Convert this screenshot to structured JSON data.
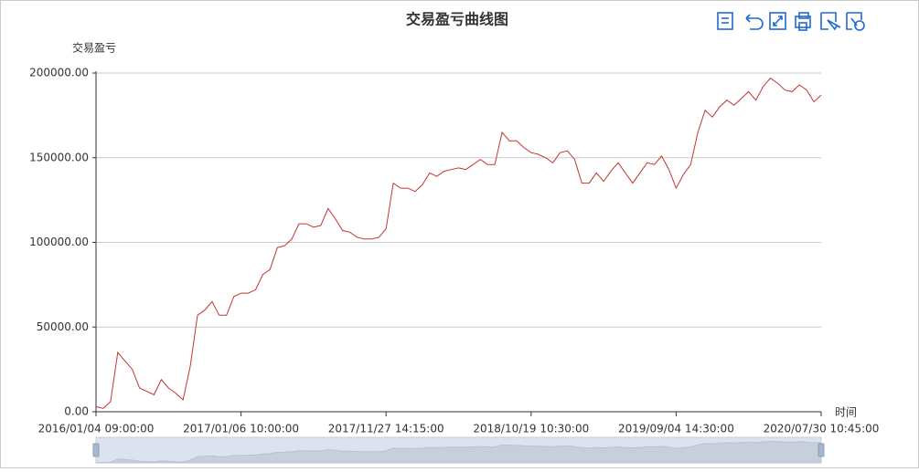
{
  "chart_data": {
    "type": "line",
    "title": "交易盈亏曲线图",
    "y_axis_label": "交易盈亏",
    "x_axis_label": "时间",
    "categories": [
      "2016/01/04 09:00:00",
      null,
      null,
      null,
      null,
      null,
      null,
      null,
      null,
      null,
      null,
      null,
      null,
      null,
      null,
      null,
      null,
      null,
      null,
      null,
      "2017/01/06 10:00:00",
      null,
      null,
      null,
      null,
      null,
      null,
      null,
      null,
      null,
      null,
      null,
      null,
      null,
      null,
      null,
      null,
      null,
      null,
      null,
      "2017/11/27 14:15:00",
      null,
      null,
      null,
      null,
      null,
      null,
      null,
      null,
      null,
      null,
      null,
      null,
      null,
      null,
      null,
      null,
      null,
      null,
      null,
      "2018/10/19 10:30:00",
      null,
      null,
      null,
      null,
      null,
      null,
      null,
      null,
      null,
      null,
      null,
      null,
      null,
      null,
      null,
      null,
      null,
      null,
      null,
      "2019/09/04 14:30:00",
      null,
      null,
      null,
      null,
      null,
      null,
      null,
      null,
      null,
      null,
      null,
      null,
      null,
      null,
      null,
      null,
      null,
      null,
      null,
      "2020/07/30 10:45:00"
    ],
    "values": [
      3000,
      2000,
      6000,
      35000,
      30000,
      25000,
      14000,
      12000,
      10000,
      19000,
      14000,
      11000,
      7000,
      27000,
      57000,
      60000,
      65000,
      57000,
      57000,
      68000,
      70000,
      70000,
      72000,
      81000,
      84000,
      97000,
      98000,
      102000,
      111000,
      111000,
      109000,
      110000,
      120000,
      114000,
      107000,
      106000,
      103000,
      102000,
      102000,
      103000,
      108000,
      135000,
      132000,
      132000,
      130000,
      134000,
      141000,
      139000,
      142000,
      143000,
      144000,
      143000,
      146000,
      149000,
      146000,
      146000,
      165000,
      160000,
      160000,
      156000,
      153000,
      152000,
      150000,
      147000,
      153000,
      154000,
      149000,
      135000,
      135000,
      141000,
      136000,
      142000,
      147000,
      141000,
      135000,
      141000,
      147000,
      146000,
      151000,
      143000,
      132000,
      140000,
      146000,
      165000,
      178000,
      174000,
      180000,
      184000,
      181000,
      185000,
      189000,
      184000,
      192000,
      197000,
      194000,
      190000,
      189000,
      193000,
      190000,
      183000,
      187000
    ],
    "color": "#c23531",
    "ylim": [
      0,
      200000
    ],
    "yticks": [
      {
        "value": 0,
        "label": "0.00"
      },
      {
        "value": 50000,
        "label": "50000.00"
      },
      {
        "value": 100000,
        "label": "100000.00"
      },
      {
        "value": 150000,
        "label": "150000.00"
      },
      {
        "value": 200000,
        "label": "200000.00"
      }
    ],
    "grid": true
  }
}
